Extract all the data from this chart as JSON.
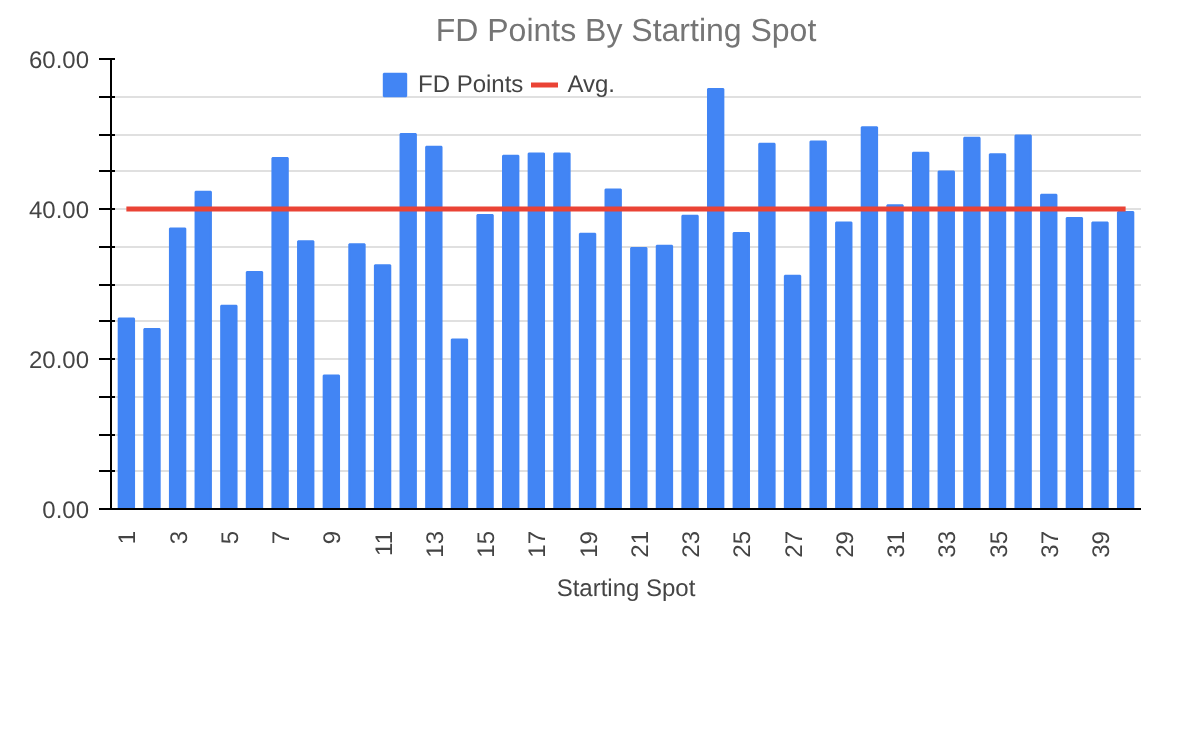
{
  "chart_data": {
    "type": "bar",
    "title": "FD Points By Starting Spot",
    "xlabel": "Starting Spot",
    "categories": [
      "1",
      null,
      "3",
      null,
      "5",
      null,
      "7",
      null,
      "9",
      null,
      "11",
      null,
      "13",
      null,
      "15",
      null,
      "17",
      null,
      "19",
      null,
      "21",
      null,
      "23",
      null,
      "25",
      null,
      "27",
      null,
      "29",
      null,
      "31",
      null,
      "33",
      null,
      "35",
      null,
      "37",
      null,
      "39",
      null
    ],
    "series": [
      {
        "name": "FD Points",
        "color": "#4285f4",
        "values": [
          25.4,
          24.0,
          37.4,
          42.3,
          27.1,
          31.6,
          46.8,
          35.7,
          17.8,
          35.3,
          32.5,
          50.0,
          48.3,
          22.6,
          39.2,
          47.1,
          47.4,
          47.4,
          36.7,
          42.6,
          34.8,
          35.1,
          39.1,
          56.0,
          36.8,
          48.7,
          31.1,
          49.0,
          38.2,
          50.9,
          40.5,
          47.5,
          45.0,
          49.5,
          47.3,
          49.8,
          41.9,
          38.8,
          38.2,
          39.6
        ]
      },
      {
        "name": "Avg.",
        "type": "line",
        "color": "#ea4335",
        "values": [
          40,
          40,
          40,
          40,
          40,
          40,
          40,
          40,
          40,
          40,
          40,
          40,
          40,
          40,
          40,
          40,
          40,
          40,
          40,
          40,
          40,
          40,
          40,
          40,
          40,
          40,
          40,
          40,
          40,
          40,
          40,
          40,
          40,
          40,
          40,
          40,
          40,
          40,
          40,
          40
        ]
      }
    ],
    "ylim": [
      0,
      60
    ],
    "yticks": [
      {
        "value": 0,
        "label": "0.00"
      },
      {
        "value": 5,
        "label": null
      },
      {
        "value": 10,
        "label": null
      },
      {
        "value": 15,
        "label": null
      },
      {
        "value": 20,
        "label": "20.00"
      },
      {
        "value": 25,
        "label": null
      },
      {
        "value": 30,
        "label": null
      },
      {
        "value": 35,
        "label": null
      },
      {
        "value": 40,
        "label": "40.00"
      },
      {
        "value": 45,
        "label": null
      },
      {
        "value": 50,
        "label": null
      },
      {
        "value": 55,
        "label": null
      },
      {
        "value": 60,
        "label": "60.00"
      }
    ],
    "grid": "y",
    "legend": "top"
  }
}
